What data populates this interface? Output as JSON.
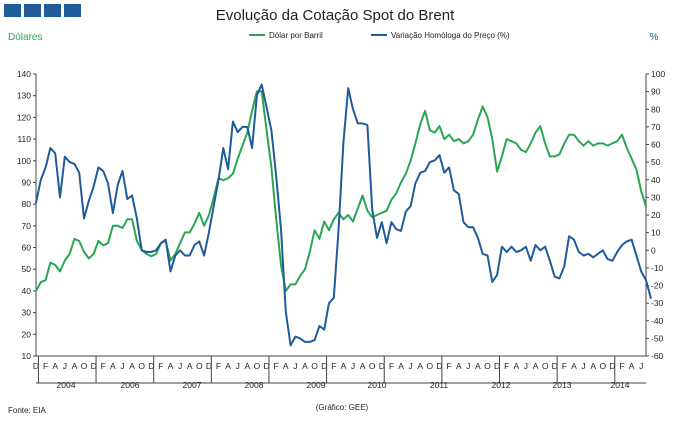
{
  "logo": {
    "color": "#1f5c99",
    "block_count": 4
  },
  "chart_data": {
    "type": "line",
    "title": "Evolução da Cotação Spot do Brent",
    "ylabel_left": "Dólares",
    "ylabel_right": "%",
    "y_left_range": [
      10,
      140
    ],
    "y_left_ticks": [
      10,
      20,
      30,
      40,
      50,
      60,
      70,
      80,
      90,
      100,
      110,
      120,
      130,
      140
    ],
    "y_right_range": [
      -60,
      100
    ],
    "y_right_ticks": [
      -60,
      -50,
      -40,
      -30,
      -20,
      -10,
      0,
      10,
      20,
      30,
      40,
      50,
      60,
      70,
      80,
      90,
      100
    ],
    "x_start": "2003-12",
    "month_labels": [
      "D",
      "F",
      "A",
      "J",
      "A",
      "O"
    ],
    "years": [
      "2004",
      "2006",
      "2007",
      "2008",
      "2009",
      "2010",
      "2011",
      "2012",
      "2013",
      "2014"
    ],
    "grid": false,
    "legend_position": "top-center",
    "series": [
      {
        "name": "Dólar por Barril",
        "axis": "left",
        "color": "#2aa653",
        "values": [
          40,
          44,
          45,
          53,
          52,
          49,
          54,
          57,
          64,
          63,
          58,
          55,
          57,
          63,
          61,
          62,
          70,
          70,
          69,
          73,
          73,
          63,
          59,
          57,
          56,
          57,
          62,
          63,
          54,
          57,
          62,
          67,
          67,
          71,
          76,
          70,
          75,
          83,
          92,
          91,
          92,
          94,
          101,
          107,
          113,
          123,
          132,
          132,
          114,
          97,
          73,
          52,
          40,
          43,
          43,
          47,
          50,
          58,
          68,
          64,
          72,
          68,
          73,
          76,
          73,
          75,
          72,
          78,
          84,
          77,
          74,
          75,
          76,
          77,
          82,
          85,
          90,
          94,
          100,
          108,
          117,
          123,
          114,
          113,
          116,
          110,
          112,
          109,
          110,
          108,
          109,
          112,
          119,
          125,
          120,
          110,
          95,
          102,
          110,
          109,
          108,
          105,
          104,
          108,
          113,
          116,
          108,
          102,
          102,
          103,
          108,
          112,
          112,
          109,
          107,
          109,
          107,
          108,
          108,
          107,
          108,
          109,
          112,
          106,
          101,
          96,
          86,
          79
        ]
      },
      {
        "name": "Variação Homóloga do Preço (%)",
        "axis": "right",
        "color": "#1f5c99",
        "values": [
          27,
          40,
          47,
          58,
          55,
          30,
          53,
          50,
          49,
          44,
          18,
          28,
          36,
          47,
          45,
          38,
          21,
          37,
          45,
          29,
          31,
          18,
          0,
          -1,
          -1,
          0,
          4,
          6,
          -12,
          -3,
          0,
          -3,
          -3,
          3,
          5,
          -3,
          10,
          25,
          40,
          58,
          46,
          73,
          67,
          70,
          70,
          58,
          88,
          94,
          81,
          68,
          42,
          12,
          -35,
          -54,
          -49,
          -50,
          -52,
          -52,
          -51,
          -43,
          -45,
          -30,
          -27,
          12,
          61,
          92,
          80,
          72,
          72,
          71,
          23,
          7,
          16,
          4,
          16,
          12,
          11,
          22,
          25,
          38,
          44,
          45,
          50,
          51,
          54,
          44,
          47,
          34,
          32,
          16,
          13,
          13,
          7,
          -2,
          -3,
          -18,
          -14,
          2,
          -1,
          2,
          -1,
          0,
          2,
          -6,
          3,
          0,
          2,
          -6,
          -15,
          -16,
          -9,
          8,
          6,
          -1,
          -3,
          -2,
          -4,
          -2,
          0,
          -5,
          -6,
          -1,
          3,
          5,
          6,
          -3,
          -12,
          -17,
          -27
        ]
      }
    ]
  },
  "footer": {
    "source": "Fonte: EIA",
    "credit": "(Gráfico: GEE)"
  }
}
